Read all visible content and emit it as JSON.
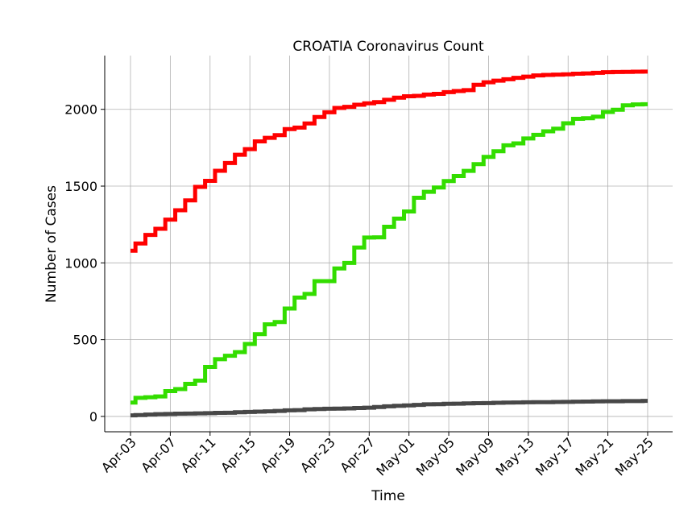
{
  "chart_data": {
    "type": "line",
    "title": "CROATIA Coronavirus Count",
    "xlabel": "Time",
    "ylabel": "Number of Cases",
    "x_start_label": "Apr-03",
    "x_tick_labels": [
      "Apr-03",
      "Apr-07",
      "Apr-11",
      "Apr-15",
      "Apr-19",
      "Apr-23",
      "Apr-27",
      "May-01",
      "May-05",
      "May-09",
      "May-13",
      "May-17",
      "May-21",
      "May-25"
    ],
    "y_ticks": [
      0,
      500,
      1000,
      1500,
      2000
    ],
    "ylim": [
      -100,
      2350
    ],
    "grid": true,
    "x": [
      "Apr-03",
      "Apr-04",
      "Apr-05",
      "Apr-06",
      "Apr-07",
      "Apr-08",
      "Apr-09",
      "Apr-10",
      "Apr-11",
      "Apr-12",
      "Apr-13",
      "Apr-14",
      "Apr-15",
      "Apr-16",
      "Apr-17",
      "Apr-18",
      "Apr-19",
      "Apr-20",
      "Apr-21",
      "Apr-22",
      "Apr-23",
      "Apr-24",
      "Apr-25",
      "Apr-26",
      "Apr-27",
      "Apr-28",
      "Apr-29",
      "Apr-30",
      "May-01",
      "May-02",
      "May-03",
      "May-04",
      "May-05",
      "May-06",
      "May-07",
      "May-08",
      "May-09",
      "May-10",
      "May-11",
      "May-12",
      "May-13",
      "May-14",
      "May-15",
      "May-16",
      "May-17",
      "May-18",
      "May-19",
      "May-20",
      "May-21",
      "May-22",
      "May-23",
      "May-24",
      "May-25"
    ],
    "series": [
      {
        "color": "#ff0000",
        "values": [
          1079,
          1126,
          1182,
          1222,
          1282,
          1343,
          1407,
          1495,
          1534,
          1600,
          1650,
          1704,
          1741,
          1791,
          1814,
          1832,
          1871,
          1881,
          1908,
          1950,
          1981,
          2009,
          2016,
          2030,
          2039,
          2047,
          2062,
          2076,
          2085,
          2088,
          2096,
          2101,
          2112,
          2119,
          2125,
          2160,
          2176,
          2187,
          2196,
          2205,
          2213,
          2221,
          2224,
          2226,
          2228,
          2232,
          2234,
          2238,
          2242,
          2243,
          2244,
          2245,
          2246
        ]
      },
      {
        "color": "#33dd00",
        "values": [
          90,
          121,
          125,
          130,
          165,
          178,
          212,
          233,
          322,
          373,
          395,
          419,
          472,
          536,
          600,
          615,
          703,
          774,
          798,
          881,
          881,
          964,
          1000,
          1100,
          1165,
          1166,
          1235,
          1288,
          1335,
          1424,
          1463,
          1491,
          1533,
          1566,
          1599,
          1643,
          1690,
          1727,
          1766,
          1778,
          1810,
          1834,
          1857,
          1874,
          1909,
          1938,
          1942,
          1952,
          1983,
          1997,
          2026,
          2032,
          2033
        ]
      },
      {
        "color": "#474747",
        "values": [
          7,
          9,
          12,
          15,
          16,
          18,
          19,
          20,
          21,
          23,
          24,
          27,
          29,
          31,
          33,
          36,
          40,
          41,
          46,
          48,
          50,
          51,
          52,
          55,
          57,
          61,
          66,
          69,
          72,
          75,
          79,
          80,
          82,
          83,
          85,
          86,
          87,
          89,
          90,
          91,
          92,
          93,
          93,
          94,
          95,
          96,
          97,
          98,
          99,
          99,
          100,
          100,
          101
        ]
      }
    ]
  }
}
